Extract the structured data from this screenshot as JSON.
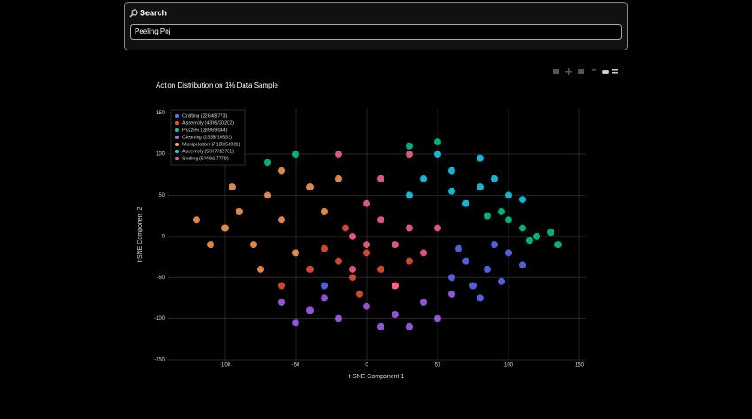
{
  "search": {
    "title": "Search",
    "query": "Peeling Poj"
  },
  "chart_data": {
    "type": "scatter",
    "title": "Action Distribution on 1% Data Sample",
    "x_label": "t-SNE Component 1",
    "y_label": "t-SNE Component 2",
    "xlim": [
      -140,
      155
    ],
    "ylim": [
      -150,
      155
    ],
    "xticks": [
      -100,
      -50,
      0,
      50,
      100,
      150
    ],
    "yticks": [
      -150,
      -100,
      -50,
      0,
      50,
      100,
      150
    ],
    "grid": true,
    "legend": "top-left",
    "series": [
      {
        "name": "Crafting (2264/8773)",
        "color": "#636efa",
        "x": [
          70,
          85,
          95,
          75,
          100,
          60,
          110,
          90,
          80,
          65,
          -30
        ],
        "values": [
          -30,
          -40,
          -55,
          -60,
          -20,
          -50,
          -35,
          -10,
          -75,
          -15,
          -60
        ]
      },
      {
        "name": "Assembly (4396/20202)",
        "color": "#ef553b",
        "x": [
          -20,
          -10,
          0,
          10,
          -30,
          20,
          -5,
          -40,
          30,
          -60,
          -15
        ],
        "values": [
          -30,
          -50,
          -20,
          -40,
          -15,
          -60,
          -70,
          -40,
          -30,
          -60,
          10
        ]
      },
      {
        "name": "Puzzles (2895/9044)",
        "color": "#00cc96",
        "x": [
          100,
          110,
          120,
          130,
          95,
          115,
          30,
          50,
          -70,
          -50,
          135,
          85
        ],
        "values": [
          20,
          10,
          0,
          5,
          30,
          -5,
          110,
          115,
          90,
          100,
          -10,
          25
        ]
      },
      {
        "name": "Cleaning (2335/10532)",
        "color": "#ab63fa",
        "x": [
          -40,
          -20,
          0,
          20,
          40,
          -60,
          10,
          -30,
          50,
          30,
          -50,
          60
        ],
        "values": [
          -90,
          -100,
          -85,
          -95,
          -80,
          -80,
          -110,
          -75,
          -100,
          -110,
          -105,
          -70
        ]
      },
      {
        "name": "Manipulation (7120/53901)",
        "color": "#ffa15a",
        "x": [
          -100,
          -90,
          -80,
          -70,
          -60,
          -50,
          -110,
          -40,
          -30,
          -95,
          -75,
          -60,
          -120,
          -20
        ],
        "values": [
          10,
          30,
          -10,
          50,
          20,
          -20,
          -10,
          60,
          30,
          60,
          -40,
          80,
          20,
          70
        ]
      },
      {
        "name": "Assembly (5937/12701)",
        "color": "#19d3f3",
        "x": [
          40,
          60,
          80,
          70,
          100,
          50,
          30,
          90,
          110,
          60,
          80
        ],
        "values": [
          70,
          80,
          60,
          40,
          50,
          100,
          50,
          70,
          45,
          55,
          95
        ]
      },
      {
        "name": "Sorting (5349/17778)",
        "color": "#ff6692",
        "x": [
          10,
          20,
          30,
          0,
          -10,
          40,
          10,
          -20,
          30,
          -10,
          50,
          20,
          0
        ],
        "values": [
          20,
          -10,
          10,
          40,
          0,
          -20,
          70,
          100,
          100,
          -40,
          10,
          -60,
          -10
        ]
      }
    ]
  }
}
